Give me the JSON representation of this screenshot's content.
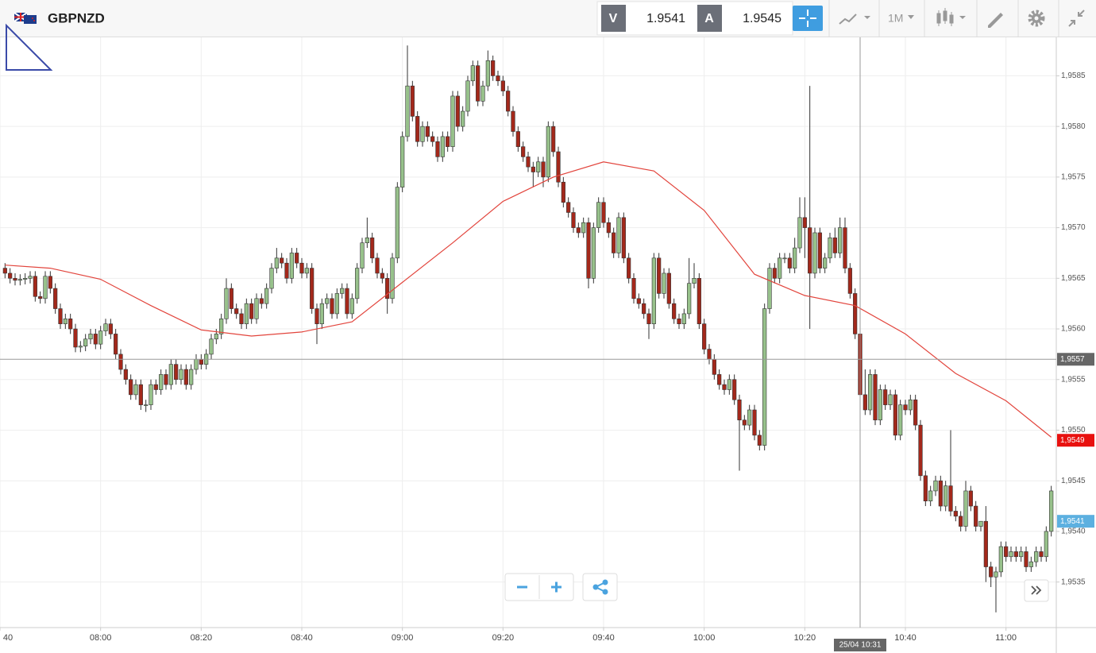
{
  "header": {
    "symbol": "GBPNZD",
    "sell_label": "V",
    "sell": "1.9541",
    "buy_label": "A",
    "buy": "1.9545",
    "timeframe": "1M"
  },
  "chart_data": {
    "type": "candlestick",
    "x": [
      "07:41",
      "07:42",
      "07:43",
      "07:44",
      "07:45",
      "07:46",
      "07:47",
      "07:48",
      "07:49",
      "07:50",
      "07:51",
      "07:52",
      "07:53",
      "07:54",
      "07:55",
      "07:56",
      "07:57",
      "07:58",
      "07:59",
      "08:00",
      "08:01",
      "08:02",
      "08:03",
      "08:04",
      "08:05",
      "08:06",
      "08:07",
      "08:08",
      "08:09",
      "08:10",
      "08:11",
      "08:12",
      "08:13",
      "08:14",
      "08:15",
      "08:16",
      "08:17",
      "08:18",
      "08:19",
      "08:20",
      "08:21",
      "08:22",
      "08:23",
      "08:24",
      "08:25",
      "08:26",
      "08:27",
      "08:28",
      "08:29",
      "08:30",
      "08:31",
      "08:32",
      "08:33",
      "08:34",
      "08:35",
      "08:36",
      "08:37",
      "08:38",
      "08:39",
      "08:40",
      "08:41",
      "08:42",
      "08:43",
      "08:44",
      "08:45",
      "08:46",
      "08:47",
      "08:48",
      "08:49",
      "08:50",
      "08:51",
      "08:52",
      "08:53",
      "08:54",
      "08:55",
      "08:56",
      "08:57",
      "08:58",
      "08:59",
      "09:00",
      "09:01",
      "09:02",
      "09:03",
      "09:04",
      "09:05",
      "09:06",
      "09:07",
      "09:08",
      "09:09",
      "09:10",
      "09:11",
      "09:12",
      "09:13",
      "09:14",
      "09:15",
      "09:16",
      "09:17",
      "09:18",
      "09:19",
      "09:20",
      "09:21",
      "09:22",
      "09:23",
      "09:24",
      "09:25",
      "09:26",
      "09:27",
      "09:28",
      "09:29",
      "09:30",
      "09:31",
      "09:32",
      "09:33",
      "09:34",
      "09:35",
      "09:36",
      "09:37",
      "09:38",
      "09:39",
      "09:40",
      "09:41",
      "09:42",
      "09:43",
      "09:44",
      "09:45",
      "09:46",
      "09:47",
      "09:48",
      "09:49",
      "09:50",
      "09:51",
      "09:52",
      "09:53",
      "09:54",
      "09:55",
      "09:56",
      "09:57",
      "09:58",
      "09:59",
      "10:00",
      "10:01",
      "10:02",
      "10:03",
      "10:04",
      "10:05",
      "10:06",
      "10:07",
      "10:08",
      "10:09",
      "10:10",
      "10:11",
      "10:12",
      "10:13",
      "10:14",
      "10:15",
      "10:16",
      "10:17",
      "10:18",
      "10:19",
      "10:20",
      "10:21",
      "10:22",
      "10:23",
      "10:24",
      "10:25",
      "10:26",
      "10:27",
      "10:28",
      "10:29",
      "10:30",
      "10:31",
      "10:32",
      "10:33",
      "10:34",
      "10:35",
      "10:36",
      "10:37",
      "10:38",
      "10:39",
      "10:40",
      "10:41",
      "10:42",
      "10:43",
      "10:44",
      "10:45",
      "10:46",
      "10:47",
      "10:48",
      "10:49",
      "10:50",
      "10:51",
      "10:52",
      "10:53",
      "10:54",
      "10:55",
      "10:56",
      "10:57",
      "10:58",
      "10:59",
      "11:00",
      "11:01",
      "11:02",
      "11:03",
      "11:04",
      "11:05",
      "11:06",
      "11:07",
      "11:08",
      "11:09"
    ],
    "open": [
      1.9566,
      1.95655,
      1.9565,
      1.95648,
      1.95649,
      1.9565,
      1.95652,
      1.95632,
      1.9563,
      1.95652,
      1.9564,
      1.9562,
      1.95605,
      1.9561,
      1.956,
      1.95582,
      1.95583,
      1.9559,
      1.95595,
      1.95585,
      1.95598,
      1.95605,
      1.95595,
      1.95575,
      1.9556,
      1.9555,
      1.95535,
      1.95545,
      1.95525,
      1.95525,
      1.95545,
      1.9554,
      1.95555,
      1.95545,
      1.95565,
      1.9555,
      1.9556,
      1.95545,
      1.9556,
      1.9557,
      1.95565,
      1.95575,
      1.9559,
      1.95595,
      1.9561,
      1.9564,
      1.9562,
      1.95615,
      1.95605,
      1.95625,
      1.9561,
      1.9563,
      1.95625,
      1.9564,
      1.9566,
      1.9567,
      1.95665,
      1.9565,
      1.95675,
      1.95665,
      1.95655,
      1.9566,
      1.9562,
      1.95605,
      1.95625,
      1.9563,
      1.95615,
      1.95635,
      1.9564,
      1.95615,
      1.9563,
      1.9566,
      1.95685,
      1.9569,
      1.9567,
      1.95655,
      1.9565,
      1.9563,
      1.9567,
      1.9574,
      1.9579,
      1.9584,
      1.9581,
      1.95785,
      1.958,
      1.9579,
      1.95785,
      1.9577,
      1.9579,
      1.9578,
      1.9583,
      1.958,
      1.95815,
      1.95845,
      1.9586,
      1.95825,
      1.9584,
      1.95865,
      1.9585,
      1.95845,
      1.95835,
      1.95815,
      1.95795,
      1.9578,
      1.9577,
      1.9576,
      1.95755,
      1.95765,
      1.9575,
      1.958,
      1.95775,
      1.95745,
      1.95725,
      1.95715,
      1.957,
      1.95695,
      1.95705,
      1.9565,
      1.957,
      1.95725,
      1.95705,
      1.95695,
      1.95675,
      1.9571,
      1.9567,
      1.9565,
      1.9563,
      1.95625,
      1.95615,
      1.95605,
      1.9567,
      1.95635,
      1.95655,
      1.95625,
      1.9561,
      1.95605,
      1.95615,
      1.95645,
      1.9565,
      1.95605,
      1.9558,
      1.9557,
      1.95555,
      1.95545,
      1.9554,
      1.9555,
      1.9553,
      1.9551,
      1.95505,
      1.9552,
      1.95495,
      1.95485,
      1.9562,
      1.9566,
      1.9565,
      1.9567,
      1.9567,
      1.9566,
      1.9568,
      1.9571,
      1.957,
      1.95655,
      1.95695,
      1.9566,
      1.9567,
      1.9569,
      1.95675,
      1.957,
      1.9566,
      1.95635,
      1.95595,
      1.95535,
      1.9552,
      1.95555,
      1.9551,
      1.9554,
      1.95525,
      1.95535,
      1.95495,
      1.95525,
      1.9552,
      1.9553,
      1.95505,
      1.95455,
      1.9543,
      1.9544,
      1.9545,
      1.95425,
      1.95445,
      1.9542,
      1.95415,
      1.95405,
      1.9544,
      1.95425,
      1.95405,
      1.9541,
      1.95365,
      1.95355,
      1.9536,
      1.95385,
      1.95375,
      1.9538,
      1.95375,
      1.9538,
      1.95365,
      1.9537,
      1.9538,
      1.95375,
      1.954
    ],
    "high": [
      1.95665,
      1.9566,
      1.95655,
      1.95654,
      1.95655,
      1.95657,
      1.95657,
      1.95637,
      1.95657,
      1.95657,
      1.95645,
      1.95625,
      1.95615,
      1.95615,
      1.95605,
      1.95588,
      1.95595,
      1.956,
      1.956,
      1.95603,
      1.9561,
      1.9561,
      1.956,
      1.9558,
      1.95565,
      1.95555,
      1.9555,
      1.9555,
      1.9553,
      1.9555,
      1.9555,
      1.9556,
      1.9556,
      1.9557,
      1.9557,
      1.95565,
      1.95565,
      1.95565,
      1.95575,
      1.95575,
      1.9558,
      1.95595,
      1.956,
      1.95615,
      1.9565,
      1.95645,
      1.95625,
      1.9562,
      1.9563,
      1.9563,
      1.95635,
      1.95635,
      1.95645,
      1.95665,
      1.9568,
      1.95675,
      1.9567,
      1.9568,
      1.9568,
      1.9567,
      1.95665,
      1.95665,
      1.95625,
      1.9563,
      1.95635,
      1.95635,
      1.9564,
      1.95645,
      1.95645,
      1.95635,
      1.95665,
      1.9569,
      1.9571,
      1.95695,
      1.95675,
      1.9566,
      1.95655,
      1.95675,
      1.95745,
      1.95795,
      1.9588,
      1.95845,
      1.95815,
      1.95805,
      1.95805,
      1.95795,
      1.9579,
      1.95795,
      1.95795,
      1.95835,
      1.95835,
      1.9582,
      1.9585,
      1.95865,
      1.95865,
      1.95845,
      1.95875,
      1.9587,
      1.95855,
      1.9585,
      1.9584,
      1.9582,
      1.958,
      1.95785,
      1.95775,
      1.95765,
      1.9577,
      1.9577,
      1.95805,
      1.95805,
      1.9578,
      1.9575,
      1.9573,
      1.9572,
      1.95705,
      1.9571,
      1.9571,
      1.95705,
      1.9573,
      1.9573,
      1.9571,
      1.957,
      1.95715,
      1.95715,
      1.95675,
      1.95655,
      1.95635,
      1.9563,
      1.9562,
      1.95675,
      1.95675,
      1.9566,
      1.9566,
      1.9563,
      1.95615,
      1.9562,
      1.9567,
      1.95665,
      1.95655,
      1.9561,
      1.95585,
      1.95575,
      1.9556,
      1.9555,
      1.95555,
      1.95555,
      1.95535,
      1.95515,
      1.95525,
      1.95525,
      1.955,
      1.95625,
      1.95665,
      1.95665,
      1.95675,
      1.95675,
      1.95675,
      1.9569,
      1.9573,
      1.9573,
      1.9584,
      1.957,
      1.957,
      1.95675,
      1.95695,
      1.957,
      1.9571,
      1.9571,
      1.95665,
      1.9564,
      1.956,
      1.9556,
      1.9556,
      1.9556,
      1.95545,
      1.95545,
      1.9554,
      1.9554,
      1.9553,
      1.9553,
      1.95535,
      1.95535,
      1.9551,
      1.9546,
      1.95445,
      1.95455,
      1.95455,
      1.9545,
      1.955,
      1.95425,
      1.9542,
      1.9545,
      1.95445,
      1.9543,
      1.9541,
      1.95425,
      1.9537,
      1.95365,
      1.9539,
      1.9539,
      1.95385,
      1.95385,
      1.95385,
      1.95385,
      1.95375,
      1.95385,
      1.95385,
      1.95405,
      1.95445
    ],
    "low": [
      1.9565,
      1.95645,
      1.95643,
      1.95643,
      1.95644,
      1.95645,
      1.95627,
      1.95625,
      1.95625,
      1.95635,
      1.95615,
      1.956,
      1.956,
      1.95595,
      1.95577,
      1.95577,
      1.95578,
      1.95585,
      1.9558,
      1.9558,
      1.95593,
      1.9559,
      1.9557,
      1.95555,
      1.95545,
      1.9553,
      1.9553,
      1.9552,
      1.95518,
      1.9552,
      1.95535,
      1.95535,
      1.9554,
      1.9554,
      1.95545,
      1.95545,
      1.9554,
      1.9554,
      1.95555,
      1.9556,
      1.9556,
      1.9557,
      1.95585,
      1.9559,
      1.95605,
      1.95615,
      1.9561,
      1.956,
      1.956,
      1.95605,
      1.95605,
      1.9562,
      1.9562,
      1.95635,
      1.95655,
      1.9566,
      1.95645,
      1.95645,
      1.9566,
      1.9565,
      1.9565,
      1.95615,
      1.95585,
      1.956,
      1.9562,
      1.9561,
      1.9561,
      1.9563,
      1.9561,
      1.9561,
      1.95625,
      1.95655,
      1.9568,
      1.95665,
      1.9565,
      1.95645,
      1.95615,
      1.95625,
      1.95665,
      1.95735,
      1.95785,
      1.95805,
      1.9578,
      1.9578,
      1.95785,
      1.9578,
      1.95765,
      1.95765,
      1.95775,
      1.95775,
      1.95795,
      1.95795,
      1.9581,
      1.9584,
      1.9582,
      1.9582,
      1.95835,
      1.95845,
      1.9584,
      1.9583,
      1.9581,
      1.9579,
      1.95775,
      1.95765,
      1.95755,
      1.9574,
      1.9575,
      1.9574,
      1.95745,
      1.9577,
      1.9574,
      1.9572,
      1.9571,
      1.95695,
      1.9569,
      1.9569,
      1.9564,
      1.95645,
      1.95695,
      1.957,
      1.9569,
      1.9567,
      1.9567,
      1.95665,
      1.95645,
      1.95625,
      1.9562,
      1.9561,
      1.9559,
      1.956,
      1.9563,
      1.9563,
      1.9562,
      1.95605,
      1.956,
      1.956,
      1.9561,
      1.9564,
      1.956,
      1.95575,
      1.95565,
      1.9555,
      1.9554,
      1.95535,
      1.95535,
      1.95525,
      1.9546,
      1.955,
      1.955,
      1.9549,
      1.9548,
      1.9548,
      1.95615,
      1.95645,
      1.95645,
      1.95665,
      1.95655,
      1.95655,
      1.95675,
      1.9567,
      1.956,
      1.9565,
      1.95655,
      1.95655,
      1.95665,
      1.9567,
      1.9567,
      1.95655,
      1.9563,
      1.9559,
      1.9547,
      1.95515,
      1.95515,
      1.95505,
      1.95505,
      1.9552,
      1.9552,
      1.9549,
      1.9549,
      1.95515,
      1.95515,
      1.955,
      1.9545,
      1.95425,
      1.95425,
      1.95435,
      1.9542,
      1.9542,
      1.95415,
      1.9541,
      1.954,
      1.954,
      1.9542,
      1.954,
      1.954,
      1.9535,
      1.95345,
      1.9532,
      1.95355,
      1.9537,
      1.9537,
      1.9537,
      1.9537,
      1.9536,
      1.9536,
      1.95365,
      1.9537,
      1.9537,
      1.95395
    ],
    "close": [
      1.95655,
      1.9565,
      1.95648,
      1.95649,
      1.9565,
      1.95652,
      1.95632,
      1.9563,
      1.95652,
      1.9564,
      1.9562,
      1.95605,
      1.9561,
      1.956,
      1.95582,
      1.95583,
      1.9559,
      1.95595,
      1.95585,
      1.95598,
      1.95605,
      1.95595,
      1.95575,
      1.9556,
      1.9555,
      1.95535,
      1.95545,
      1.95525,
      1.95525,
      1.95545,
      1.9554,
      1.95555,
      1.95545,
      1.95565,
      1.9555,
      1.9556,
      1.95545,
      1.9556,
      1.9557,
      1.95565,
      1.95575,
      1.9559,
      1.95595,
      1.9561,
      1.9564,
      1.9562,
      1.95615,
      1.95605,
      1.95625,
      1.9561,
      1.9563,
      1.95625,
      1.9564,
      1.9566,
      1.9567,
      1.95665,
      1.9565,
      1.95675,
      1.95665,
      1.95655,
      1.9566,
      1.9562,
      1.95605,
      1.95625,
      1.9563,
      1.95615,
      1.95635,
      1.9564,
      1.95615,
      1.9563,
      1.9566,
      1.95685,
      1.9569,
      1.9567,
      1.95655,
      1.9565,
      1.9563,
      1.9567,
      1.9574,
      1.9579,
      1.9584,
      1.9581,
      1.95785,
      1.958,
      1.9579,
      1.95785,
      1.9577,
      1.9579,
      1.9578,
      1.9583,
      1.958,
      1.95815,
      1.95845,
      1.9586,
      1.95825,
      1.9584,
      1.95865,
      1.9585,
      1.95845,
      1.95835,
      1.95815,
      1.95795,
      1.9578,
      1.9577,
      1.9576,
      1.95755,
      1.95765,
      1.9575,
      1.958,
      1.95775,
      1.95745,
      1.95725,
      1.95715,
      1.957,
      1.95695,
      1.95705,
      1.9565,
      1.957,
      1.95725,
      1.95705,
      1.95695,
      1.95675,
      1.9571,
      1.9567,
      1.9565,
      1.9563,
      1.95625,
      1.95615,
      1.95605,
      1.9567,
      1.95635,
      1.95655,
      1.95625,
      1.9561,
      1.95605,
      1.95615,
      1.95645,
      1.9565,
      1.95605,
      1.9558,
      1.9557,
      1.95555,
      1.95545,
      1.9554,
      1.9555,
      1.9553,
      1.9551,
      1.95505,
      1.9552,
      1.95495,
      1.95485,
      1.9562,
      1.9566,
      1.9565,
      1.9567,
      1.9567,
      1.9566,
      1.9568,
      1.9571,
      1.957,
      1.95655,
      1.95695,
      1.9566,
      1.9567,
      1.9569,
      1.95675,
      1.957,
      1.9566,
      1.95635,
      1.95595,
      1.95535,
      1.9552,
      1.95555,
      1.9551,
      1.9554,
      1.95525,
      1.95535,
      1.95495,
      1.95525,
      1.9552,
      1.9553,
      1.95505,
      1.95455,
      1.9543,
      1.9544,
      1.9545,
      1.95425,
      1.95445,
      1.9542,
      1.95415,
      1.95405,
      1.9544,
      1.95425,
      1.95405,
      1.9541,
      1.95365,
      1.95355,
      1.9536,
      1.95385,
      1.95375,
      1.9538,
      1.95375,
      1.9538,
      1.95365,
      1.9537,
      1.9538,
      1.95375,
      1.954,
      1.9544
    ],
    "up_color": "#97c18b",
    "down_color": "#a3281b",
    "overlay": {
      "type": "line",
      "color": "#e2443c",
      "x": [
        "07:41",
        "07:50",
        "08:00",
        "08:10",
        "08:20",
        "08:30",
        "08:40",
        "08:50",
        "09:00",
        "09:10",
        "09:20",
        "09:30",
        "09:40",
        "09:50",
        "10:00",
        "10:10",
        "10:20",
        "10:30",
        "10:40",
        "10:50",
        "11:00",
        "11:09"
      ],
      "values": [
        1.95663,
        1.9566,
        1.95649,
        1.95623,
        1.95599,
        1.95593,
        1.95597,
        1.95607,
        1.95646,
        1.95685,
        1.95726,
        1.9575,
        1.95765,
        1.95756,
        1.95717,
        1.95654,
        1.95633,
        1.95623,
        1.95595,
        1.95556,
        1.95529,
        1.95493
      ]
    },
    "xlim": [
      "07:40",
      "11:10"
    ],
    "xticks": [
      {
        "value": "07:40",
        "label": "40"
      },
      "08:00",
      "08:20",
      "08:40",
      "09:00",
      "09:20",
      "09:40",
      "10:00",
      "10:20",
      "10:40",
      "11:00"
    ],
    "ylim": [
      1.95305,
      1.95888
    ],
    "yticks": [
      {
        "value": 1.9535,
        "label": "1,9535"
      },
      {
        "value": 1.954,
        "label": "1,9540"
      },
      {
        "value": 1.9545,
        "label": "1,9545"
      },
      {
        "value": 1.955,
        "label": "1,9550"
      },
      {
        "value": 1.9555,
        "label": "1,9555"
      },
      {
        "value": 1.956,
        "label": "1,9560"
      },
      {
        "value": 1.9565,
        "label": "1,9565"
      },
      {
        "value": 1.957,
        "label": "1,9570"
      },
      {
        "value": 1.9575,
        "label": "1,9575"
      },
      {
        "value": 1.958,
        "label": "1,9580"
      },
      {
        "value": 1.9585,
        "label": "1,9585"
      }
    ],
    "grid": true,
    "crosshair": {
      "x": {
        "value": "10:31",
        "label": "25/04 10:31"
      },
      "y": {
        "value": 1.9557,
        "label": "1,9557"
      }
    },
    "price_labels": [
      {
        "value": 1.9549,
        "label": "1,9549",
        "color": "#e8110f"
      },
      {
        "value": 1.9541,
        "label": "1,9541",
        "color": "#5cb0e0"
      }
    ]
  }
}
